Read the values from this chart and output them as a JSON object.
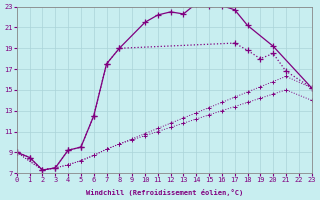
{
  "xlabel": "Windchill (Refroidissement éolien,°C)",
  "background_color": "#c8eef0",
  "grid_color": "#aad4d8",
  "line_color": "#800080",
  "xlim": [
    0,
    23
  ],
  "ylim": [
    7,
    23
  ],
  "xticks": [
    0,
    1,
    2,
    3,
    4,
    5,
    6,
    7,
    8,
    9,
    10,
    11,
    12,
    13,
    14,
    15,
    16,
    17,
    18,
    19,
    20,
    21,
    22,
    23
  ],
  "yticks": [
    7,
    9,
    11,
    13,
    15,
    17,
    19,
    21,
    23
  ],
  "s1_x": [
    0,
    1,
    2,
    3,
    4,
    5,
    6,
    7,
    8,
    10,
    11,
    12,
    13,
    14,
    15,
    16,
    17,
    18,
    20,
    23
  ],
  "s1_y": [
    9.0,
    8.5,
    7.3,
    7.5,
    9.2,
    9.5,
    12.5,
    17.5,
    19.0,
    21.5,
    22.2,
    22.5,
    22.3,
    23.3,
    23.1,
    23.1,
    22.7,
    21.2,
    19.2,
    15.2
  ],
  "s2_x": [
    0,
    1,
    2,
    3,
    4,
    5,
    6,
    7,
    8,
    17,
    18,
    19,
    20,
    21,
    23
  ],
  "s2_y": [
    9.0,
    8.5,
    7.3,
    7.5,
    9.2,
    9.5,
    12.5,
    17.5,
    19.0,
    19.5,
    18.8,
    18.0,
    18.5,
    16.8,
    15.2
  ],
  "s3_x": [
    0,
    2,
    3,
    4,
    5,
    6,
    7,
    8,
    9,
    10,
    11,
    12,
    13,
    14,
    15,
    16,
    17,
    18,
    19,
    20,
    21,
    23
  ],
  "s3_y": [
    9.0,
    7.3,
    7.5,
    7.8,
    8.2,
    8.7,
    9.3,
    9.8,
    10.3,
    10.8,
    11.3,
    11.8,
    12.3,
    12.8,
    13.3,
    13.8,
    14.3,
    14.8,
    15.3,
    15.8,
    16.3,
    15.2
  ],
  "s4_x": [
    0,
    2,
    3,
    4,
    5,
    6,
    7,
    8,
    9,
    10,
    11,
    12,
    13,
    14,
    15,
    16,
    17,
    18,
    19,
    20,
    21,
    23
  ],
  "s4_y": [
    9.0,
    7.3,
    7.5,
    7.8,
    8.2,
    8.7,
    9.3,
    9.8,
    10.2,
    10.6,
    11.0,
    11.4,
    11.8,
    12.2,
    12.6,
    13.0,
    13.4,
    13.8,
    14.2,
    14.6,
    15.0,
    14.0
  ]
}
